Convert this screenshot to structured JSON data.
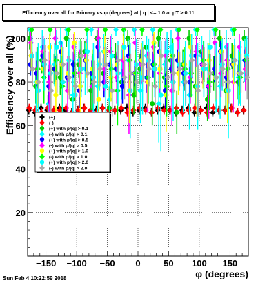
{
  "chart_data": {
    "type": "scatter",
    "title": "Efficiency over all for Primary vs φ (degrees) at | η | <= 1.0 at pT > 0.11",
    "xlabel": "φ (degrees)",
    "ylabel": "Efficiency over all (%)",
    "xlim": [
      -180,
      180
    ],
    "ylim": [
      0,
      105
    ],
    "xticks": [
      -150,
      -100,
      -50,
      0,
      50,
      100,
      150
    ],
    "yticks": [
      20,
      40,
      60,
      80,
      100
    ],
    "grid": true,
    "legend_position": "left-middle",
    "x": [
      -175,
      -165,
      -155,
      -145,
      -135,
      -125,
      -115,
      -105,
      -95,
      -85,
      -75,
      -65,
      -55,
      -45,
      -35,
      -25,
      -15,
      -5,
      5,
      15,
      25,
      35,
      45,
      55,
      65,
      75,
      85,
      95,
      105,
      115,
      125,
      135,
      145,
      155,
      165,
      175
    ],
    "series": [
      {
        "name": "(+)",
        "color": "#000000",
        "marker": "diamond",
        "values": [
          67,
          66,
          68,
          67,
          66,
          68,
          67,
          66,
          67,
          68,
          66,
          67,
          68,
          66,
          67,
          67,
          68,
          66,
          67,
          68,
          66,
          67,
          68,
          67,
          66,
          67,
          68,
          66,
          67,
          68,
          66,
          67,
          67,
          68,
          66,
          67
        ],
        "errors": [
          2,
          2,
          2,
          2,
          2,
          2,
          2,
          2,
          2,
          2,
          2,
          2,
          2,
          2,
          2,
          2,
          2,
          2,
          2,
          2,
          2,
          2,
          2,
          2,
          2,
          2,
          2,
          2,
          2,
          2,
          2,
          2,
          2,
          2,
          2,
          2
        ]
      },
      {
        "name": "(-)",
        "color": "#ff0000",
        "marker": "diamond",
        "values": [
          68,
          67,
          66,
          68,
          67,
          67,
          68,
          66,
          67,
          68,
          67,
          66,
          68,
          67,
          67,
          68,
          66,
          67,
          68,
          67,
          66,
          68,
          67,
          67,
          68,
          66,
          67,
          68,
          67,
          66,
          68,
          67,
          67,
          68,
          66,
          67
        ],
        "errors": [
          2,
          2,
          2,
          2,
          2,
          2,
          2,
          2,
          2,
          2,
          2,
          2,
          2,
          2,
          2,
          2,
          2,
          2,
          2,
          2,
          2,
          2,
          2,
          2,
          2,
          2,
          2,
          2,
          2,
          2,
          2,
          2,
          2,
          2,
          2,
          2
        ]
      },
      {
        "name": "(+) with p/|q| > 0.1",
        "color": "#00cc00",
        "marker": "circle",
        "values": [
          100,
          78,
          90,
          64,
          86,
          82,
          100,
          72,
          88,
          94,
          76,
          100,
          84,
          68,
          92,
          80,
          100,
          74,
          86,
          96,
          70,
          100,
          82,
          90,
          66,
          88,
          100,
          78,
          94,
          72,
          84,
          100,
          76,
          92,
          80,
          100
        ],
        "errors": [
          5,
          8,
          6,
          10,
          7,
          8,
          4,
          10,
          6,
          5,
          9,
          4,
          7,
          10,
          6,
          8,
          4,
          9,
          7,
          5,
          10,
          4,
          8,
          6,
          10,
          7,
          4,
          9,
          5,
          10,
          8,
          4,
          9,
          6,
          8,
          4
        ]
      },
      {
        "name": "(-) with p/|q| > 0.1",
        "color": "#00ffff",
        "marker": "diamond",
        "values": [
          104,
          80,
          96,
          70,
          88,
          98,
          104,
          74,
          90,
          86,
          104,
          78,
          94,
          72,
          104,
          84,
          90,
          104,
          76,
          92,
          104,
          70,
          88,
          96,
          104,
          80,
          74,
          104,
          92,
          86,
          104,
          78,
          96,
          104,
          82,
          90
        ],
        "errors": [
          3,
          14,
          8,
          18,
          10,
          9,
          3,
          16,
          9,
          12,
          3,
          14,
          8,
          18,
          3,
          12,
          10,
          3,
          15,
          9,
          3,
          18,
          11,
          8,
          3,
          14,
          16,
          3,
          9,
          12,
          3,
          15,
          8,
          3,
          13,
          10
        ]
      },
      {
        "name": "(+) with p/|q| > 0.5",
        "color": "#0000ff",
        "marker": "circle",
        "values": [
          88,
          84,
          92,
          78,
          86,
          94,
          82,
          88,
          76,
          90,
          84,
          96,
          80,
          88,
          86,
          78,
          92,
          84,
          90,
          82,
          88,
          94,
          76,
          86,
          90,
          84,
          80,
          92,
          88,
          78,
          86,
          94,
          82,
          88,
          84,
          90
        ],
        "errors": [
          5,
          6,
          5,
          8,
          6,
          5,
          7,
          6,
          8,
          5,
          6,
          5,
          7,
          6,
          6,
          8,
          5,
          6,
          5,
          7,
          6,
          5,
          8,
          6,
          5,
          6,
          7,
          5,
          6,
          8,
          6,
          5,
          7,
          6,
          6,
          5
        ]
      },
      {
        "name": "(-) with p/|q| > 0.5",
        "color": "#ff00ff",
        "marker": "diamond",
        "values": [
          98,
          86,
          94,
          80,
          100,
          88,
          76,
          96,
          84,
          92,
          78,
          100,
          86,
          94,
          82,
          90,
          74,
          98,
          88,
          80,
          96,
          84,
          92,
          76,
          100,
          86,
          82,
          94,
          88,
          78,
          98,
          84,
          90,
          80,
          96,
          86
        ],
        "errors": [
          6,
          10,
          7,
          14,
          5,
          9,
          16,
          6,
          11,
          8,
          14,
          5,
          10,
          7,
          12,
          8,
          18,
          6,
          9,
          14,
          6,
          11,
          8,
          16,
          5,
          10,
          12,
          7,
          9,
          15,
          6,
          11,
          8,
          14,
          6,
          10
        ]
      },
      {
        "name": "(+) with p/|q| > 1.0",
        "color": "#ffff00",
        "marker": "circle",
        "values": [
          92,
          80,
          86,
          96,
          74,
          88,
          84,
          98,
          78,
          90,
          86,
          72,
          94,
          82,
          88,
          96,
          76,
          84,
          90,
          80,
          98,
          86,
          74,
          92,
          84,
          88,
          96,
          78,
          86,
          90,
          82,
          94,
          76,
          88,
          84,
          92
        ],
        "errors": [
          7,
          12,
          9,
          6,
          16,
          8,
          10,
          5,
          14,
          8,
          9,
          18,
          7,
          11,
          9,
          6,
          15,
          10,
          8,
          12,
          5,
          9,
          17,
          7,
          10,
          8,
          6,
          14,
          9,
          8,
          11,
          7,
          15,
          9,
          10,
          8
        ]
      },
      {
        "name": "(-) with p/|q| > 1.0",
        "color": "#00ff00",
        "marker": "diamond",
        "values": [
          104,
          86,
          82,
          104,
          90,
          78,
          104,
          84,
          92,
          104,
          80,
          88,
          104,
          86,
          76,
          104,
          90,
          84,
          104,
          82,
          88,
          104,
          78,
          92,
          104,
          86,
          84,
          104,
          90,
          80,
          104,
          88,
          86,
          104,
          82,
          90
        ],
        "errors": [
          3,
          10,
          12,
          3,
          9,
          14,
          3,
          11,
          8,
          3,
          13,
          10,
          3,
          10,
          16,
          3,
          9,
          11,
          3,
          12,
          10,
          3,
          14,
          8,
          3,
          10,
          11,
          3,
          9,
          13,
          3,
          10,
          10,
          3,
          12,
          9
        ]
      },
      {
        "name": "(+) with p/|q| > 2.0",
        "color": "#00ffff",
        "marker": "circle",
        "values": [
          92,
          76,
          88,
          84,
          96,
          80,
          90,
          74,
          86,
          94,
          82,
          88,
          78,
          92,
          84,
          96,
          76,
          88,
          82,
          90,
          86,
          74,
          94,
          80,
          88,
          84,
          92,
          78,
          86,
          96,
          82,
          88,
          76,
          90,
          84,
          92
        ],
        "errors": [
          9,
          22,
          12,
          14,
          8,
          18,
          10,
          24,
          13,
          9,
          16,
          12,
          20,
          10,
          15,
          8,
          22,
          12,
          17,
          10,
          13,
          26,
          9,
          18,
          12,
          15,
          10,
          20,
          13,
          8,
          16,
          12,
          22,
          10,
          15,
          9
        ]
      },
      {
        "name": "(-) with p/|q| > 2.0",
        "color": "#aaaaaa",
        "marker": "diamond",
        "values": [
          86,
          80,
          90,
          76,
          84,
          88,
          82,
          78,
          92,
          84,
          80,
          86,
          88,
          76,
          90,
          82,
          84,
          80,
          88,
          86,
          78,
          92,
          82,
          84,
          86,
          80,
          90,
          76,
          88,
          84,
          82,
          86,
          80,
          90,
          84,
          82
        ],
        "errors": [
          8,
          10,
          7,
          12,
          9,
          8,
          10,
          11,
          7,
          9,
          10,
          8,
          8,
          12,
          7,
          10,
          9,
          10,
          8,
          8,
          11,
          7,
          10,
          9,
          8,
          10,
          7,
          12,
          8,
          9,
          10,
          8,
          10,
          7,
          9,
          10
        ]
      }
    ]
  },
  "footer": {
    "date": "Sun Feb  4 10:22:59 2018"
  }
}
